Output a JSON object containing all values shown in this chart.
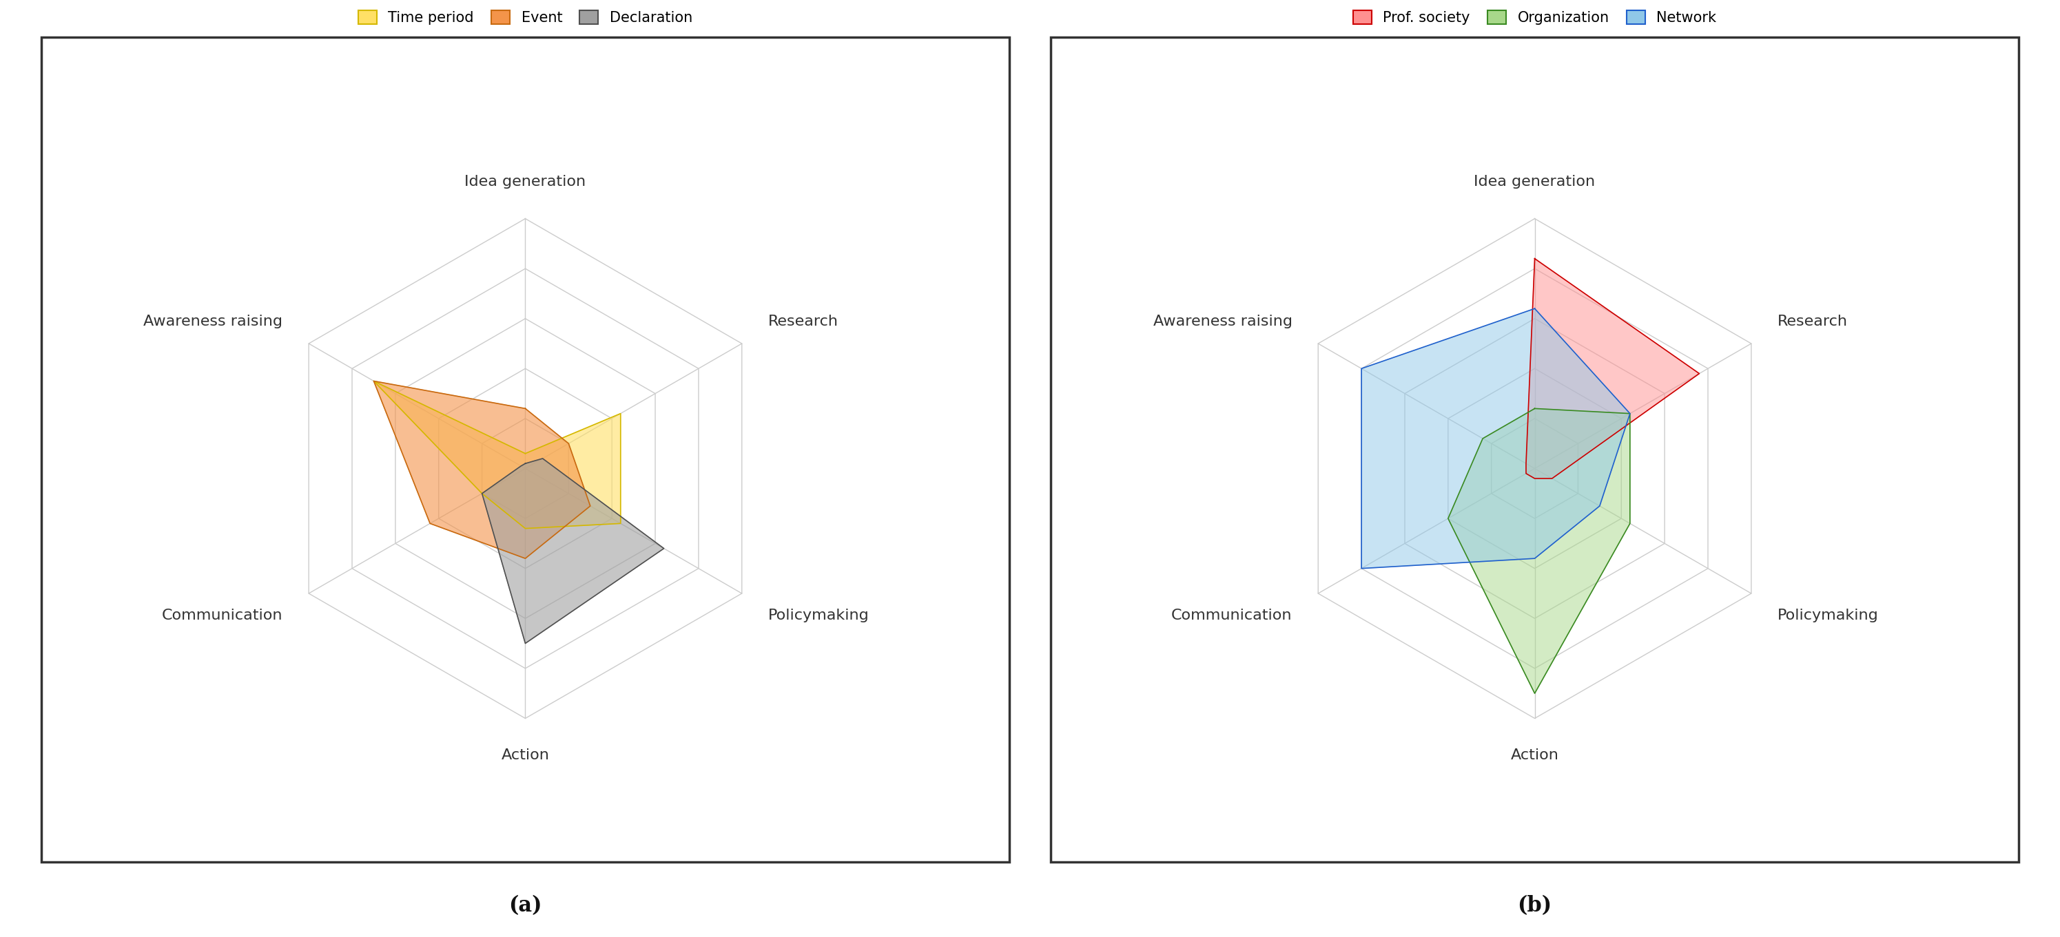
{
  "categories": [
    "Idea generation",
    "Research",
    "Policymaking",
    "Action",
    "Communication",
    "Awareness raising"
  ],
  "chart_a": {
    "title_label": "(a)",
    "series": [
      {
        "name": "Time period",
        "values": [
          0.3,
          2.2,
          2.2,
          1.2,
          1.0,
          3.5
        ],
        "color": "#FFE066",
        "edge_color": "#D4B800",
        "alpha": 0.6
      },
      {
        "name": "Event",
        "values": [
          1.2,
          1.0,
          1.5,
          1.8,
          2.2,
          3.5
        ],
        "color": "#F4944A",
        "edge_color": "#C86A10",
        "alpha": 0.6
      },
      {
        "name": "Declaration",
        "values": [
          0.1,
          0.4,
          3.2,
          3.5,
          1.0,
          0.1
        ],
        "color": "#A0A0A0",
        "edge_color": "#505050",
        "alpha": 0.6
      }
    ],
    "legend_colors": [
      "#FFE066",
      "#F4944A",
      "#A0A0A0"
    ],
    "legend_edge_colors": [
      "#D4B800",
      "#C86A10",
      "#505050"
    ],
    "legend_labels": [
      "Time period",
      "Event",
      "Declaration"
    ]
  },
  "chart_b": {
    "title_label": "(b)",
    "series": [
      {
        "name": "Prof. society",
        "values": [
          4.2,
          3.8,
          0.4,
          0.2,
          0.2,
          0.2
        ],
        "color": "#FF9090",
        "edge_color": "#CC0000",
        "alpha": 0.5
      },
      {
        "name": "Organization",
        "values": [
          1.2,
          2.2,
          2.2,
          4.5,
          2.0,
          1.2
        ],
        "color": "#A8D88A",
        "edge_color": "#3A8A22",
        "alpha": 0.5
      },
      {
        "name": "Network",
        "values": [
          3.2,
          2.2,
          1.5,
          1.8,
          4.0,
          4.0
        ],
        "color": "#90C8E8",
        "edge_color": "#2060CC",
        "alpha": 0.5
      }
    ],
    "legend_colors": [
      "#FF9090",
      "#A8D88A",
      "#90C8E8"
    ],
    "legend_edge_colors": [
      "#CC0000",
      "#3A8A22",
      "#2060CC"
    ],
    "legend_labels": [
      "Prof. society",
      "Organization",
      "Network"
    ]
  },
  "max_val": 5.0,
  "grid_levels": [
    1,
    2,
    3,
    4,
    5
  ],
  "grid_color": "#CCCCCC",
  "spoke_color": "#CCCCCC",
  "label_fontsize": 16,
  "legend_fontsize": 15,
  "title_fontsize": 22,
  "bg_color": "#FFFFFF",
  "border_color": "#333333"
}
